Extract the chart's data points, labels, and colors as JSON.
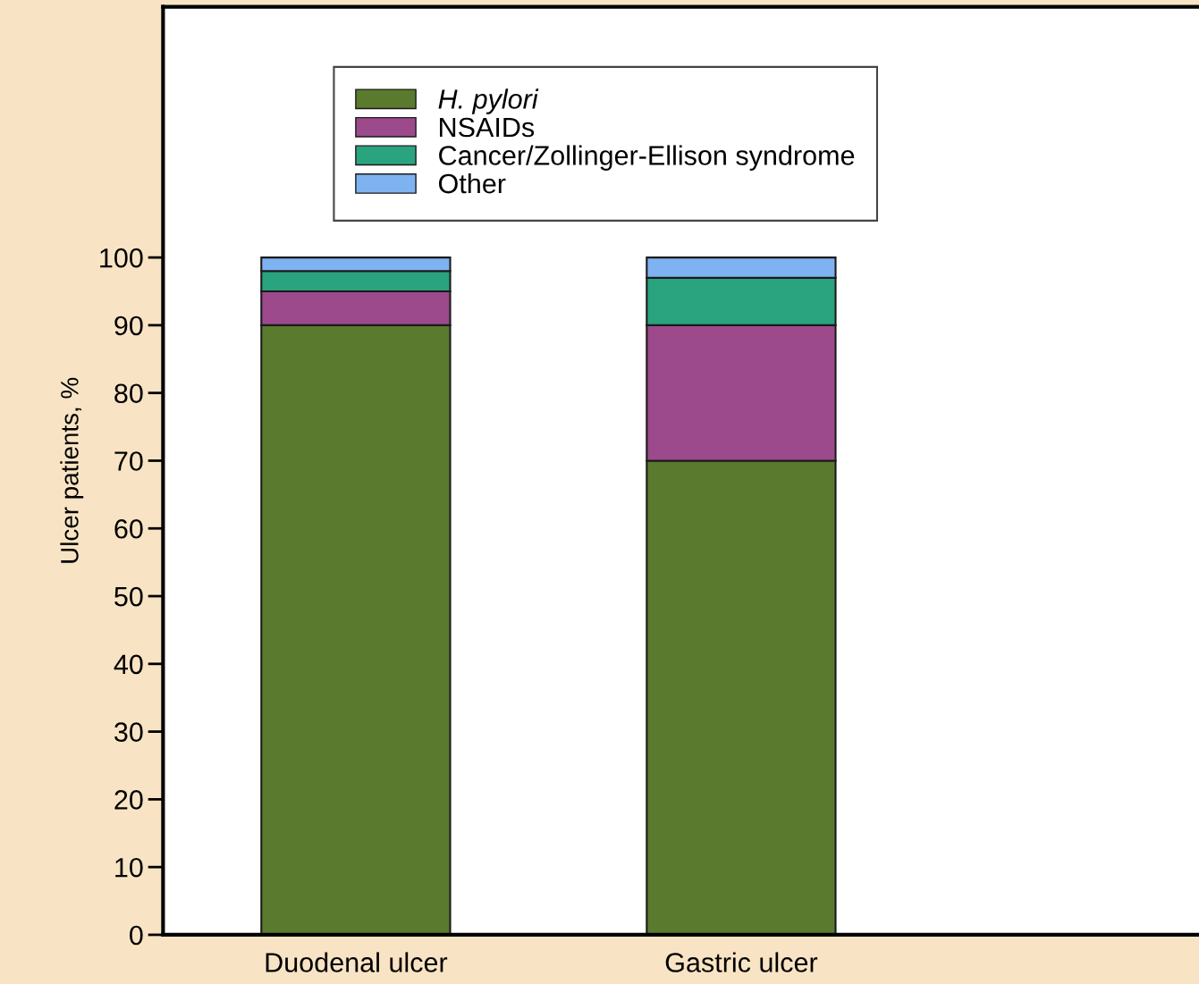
{
  "chart_data": {
    "type": "bar",
    "stacked": true,
    "ylabel": "Ulcer patients, %",
    "categories": [
      "Duodenal ulcer",
      "Gastric ulcer"
    ],
    "series": [
      {
        "name": "H. pylori",
        "color": "#5a7a2e",
        "values": [
          90,
          70
        ]
      },
      {
        "name": "NSAIDs",
        "color": "#9c4a8c",
        "values": [
          5,
          20
        ]
      },
      {
        "name": "Cancer/Zollinger-Ellison syndrome",
        "color": "#2aa37f",
        "values": [
          3,
          7
        ]
      },
      {
        "name": "Other",
        "color": "#7fb2f0",
        "values": [
          2,
          3
        ]
      }
    ],
    "ylim": [
      0,
      137
    ],
    "yticks": [
      0,
      10,
      20,
      30,
      40,
      50,
      60,
      70,
      80,
      90,
      100
    ],
    "grid": false,
    "legend": "top"
  }
}
